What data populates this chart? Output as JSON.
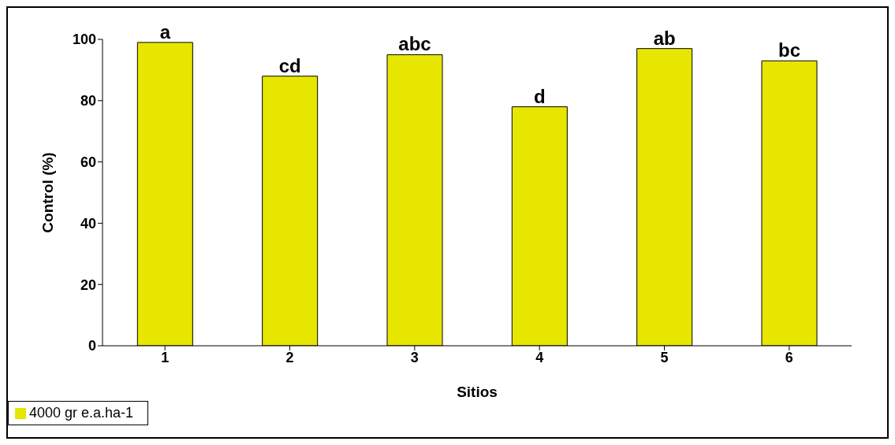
{
  "chart_data": {
    "type": "bar",
    "xlabel": "Sitios",
    "ylabel": "Control (%)",
    "categories": [
      "1",
      "2",
      "3",
      "4",
      "5",
      "6"
    ],
    "series": [
      {
        "name": "4000 gr e.a.ha-1",
        "color": "#e6e600",
        "values": [
          99,
          88,
          95,
          78,
          97,
          93
        ],
        "value_labels": [
          "a",
          "cd",
          "abc",
          "d",
          "ab",
          "bc"
        ]
      }
    ],
    "ylim": [
      0,
      100
    ],
    "yticks": [
      0,
      20,
      40,
      60,
      80,
      100
    ],
    "grid": false,
    "legend": "bottom left"
  }
}
